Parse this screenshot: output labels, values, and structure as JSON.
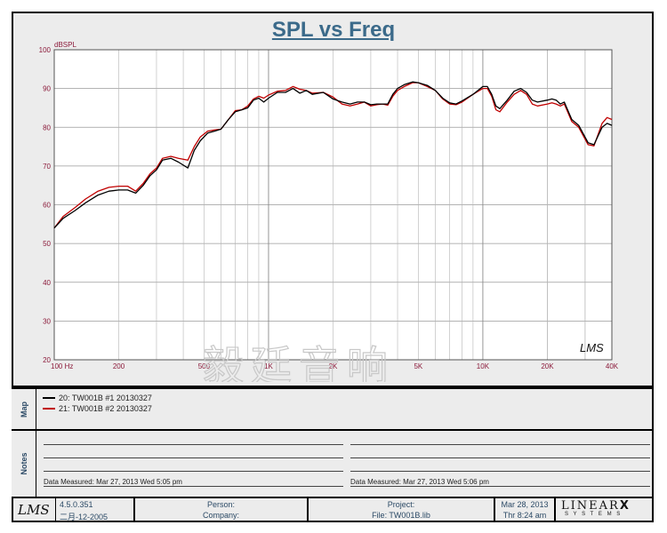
{
  "chart_data": {
    "type": "line",
    "title": "SPL vs Freq",
    "ylabel": "dBSPL",
    "x_scale": "log",
    "xlim": [
      100,
      40000
    ],
    "ylim": [
      20,
      100
    ],
    "grid": true,
    "x_ticks": [
      {
        "value": 100,
        "label": "100  Hz"
      },
      {
        "value": 200,
        "label": "200"
      },
      {
        "value": 500,
        "label": "500"
      },
      {
        "value": 1000,
        "label": "1K"
      },
      {
        "value": 2000,
        "label": "2K"
      },
      {
        "value": 5000,
        "label": "5K"
      },
      {
        "value": 10000,
        "label": "10K"
      },
      {
        "value": 20000,
        "label": "20K"
      },
      {
        "value": 40000,
        "label": "40K"
      }
    ],
    "y_ticks": [
      "100",
      "90",
      "80",
      "70",
      "60",
      "50",
      "40",
      "30",
      "20"
    ],
    "series": [
      {
        "name": "20: TW001B  #1  20130327",
        "color": "#000000",
        "points": [
          [
            100,
            54
          ],
          [
            110,
            56.5
          ],
          [
            125,
            58.5
          ],
          [
            140,
            60.5
          ],
          [
            160,
            62.5
          ],
          [
            180,
            63.5
          ],
          [
            200,
            63.8
          ],
          [
            220,
            63.8
          ],
          [
            240,
            63
          ],
          [
            260,
            65
          ],
          [
            280,
            67.5
          ],
          [
            300,
            69
          ],
          [
            320,
            71.5
          ],
          [
            350,
            72
          ],
          [
            380,
            71
          ],
          [
            420,
            69.5
          ],
          [
            450,
            74
          ],
          [
            480,
            76.5
          ],
          [
            520,
            78.5
          ],
          [
            560,
            79
          ],
          [
            600,
            79.5
          ],
          [
            650,
            82
          ],
          [
            700,
            84
          ],
          [
            750,
            84.5
          ],
          [
            800,
            85
          ],
          [
            850,
            87
          ],
          [
            900,
            87.5
          ],
          [
            950,
            86.5
          ],
          [
            1000,
            87.5
          ],
          [
            1100,
            89
          ],
          [
            1200,
            89
          ],
          [
            1300,
            90
          ],
          [
            1400,
            88.8
          ],
          [
            1500,
            89.5
          ],
          [
            1600,
            88.5
          ],
          [
            1800,
            89
          ],
          [
            2000,
            87.3
          ],
          [
            2200,
            86.5
          ],
          [
            2400,
            86
          ],
          [
            2600,
            86.5
          ],
          [
            2800,
            86.5
          ],
          [
            3000,
            85.8
          ],
          [
            3200,
            86
          ],
          [
            3400,
            86
          ],
          [
            3600,
            86
          ],
          [
            3800,
            88.5
          ],
          [
            4000,
            90
          ],
          [
            4300,
            91
          ],
          [
            4700,
            91.7
          ],
          [
            5000,
            91.5
          ],
          [
            5500,
            90.8
          ],
          [
            6000,
            89.5
          ],
          [
            6500,
            87.5
          ],
          [
            7000,
            86.3
          ],
          [
            7500,
            86
          ],
          [
            8000,
            86.8
          ],
          [
            9000,
            88.5
          ],
          [
            10000,
            90.5
          ],
          [
            10500,
            90.5
          ],
          [
            11000,
            88.5
          ],
          [
            11500,
            85.5
          ],
          [
            12000,
            84.8
          ],
          [
            13000,
            87
          ],
          [
            14000,
            89.3
          ],
          [
            15000,
            90
          ],
          [
            16000,
            89
          ],
          [
            17000,
            87
          ],
          [
            18000,
            86.5
          ],
          [
            20000,
            87
          ],
          [
            21000,
            87.3
          ],
          [
            22000,
            87
          ],
          [
            23000,
            86
          ],
          [
            24000,
            86.5
          ],
          [
            26000,
            82
          ],
          [
            28000,
            80.5
          ],
          [
            31000,
            76
          ],
          [
            33000,
            75.5
          ],
          [
            36000,
            80
          ],
          [
            38000,
            81
          ],
          [
            40000,
            80.5
          ]
        ]
      },
      {
        "name": "21: TW001B  #2  20130327",
        "color": "#c00000",
        "points": [
          [
            100,
            54
          ],
          [
            110,
            57
          ],
          [
            125,
            59.3
          ],
          [
            140,
            61.5
          ],
          [
            160,
            63.5
          ],
          [
            180,
            64.5
          ],
          [
            200,
            64.8
          ],
          [
            220,
            64.8
          ],
          [
            240,
            63.5
          ],
          [
            260,
            65.5
          ],
          [
            280,
            68
          ],
          [
            300,
            69.5
          ],
          [
            320,
            72
          ],
          [
            350,
            72.5
          ],
          [
            380,
            72
          ],
          [
            420,
            71.5
          ],
          [
            450,
            75
          ],
          [
            480,
            77.5
          ],
          [
            520,
            79
          ],
          [
            560,
            79.3
          ],
          [
            600,
            79.5
          ],
          [
            650,
            82
          ],
          [
            700,
            84.3
          ],
          [
            750,
            84.5
          ],
          [
            800,
            85.5
          ],
          [
            850,
            87.3
          ],
          [
            900,
            88
          ],
          [
            950,
            87.5
          ],
          [
            1000,
            88.3
          ],
          [
            1100,
            89.3
          ],
          [
            1200,
            89.5
          ],
          [
            1300,
            90.5
          ],
          [
            1400,
            89.8
          ],
          [
            1500,
            89.5
          ],
          [
            1600,
            88.8
          ],
          [
            1800,
            89
          ],
          [
            2000,
            87.8
          ],
          [
            2200,
            86
          ],
          [
            2400,
            85.5
          ],
          [
            2600,
            86
          ],
          [
            2800,
            86.5
          ],
          [
            3000,
            85.5
          ],
          [
            3200,
            85.8
          ],
          [
            3400,
            86
          ],
          [
            3600,
            85.7
          ],
          [
            3800,
            88
          ],
          [
            4000,
            89.5
          ],
          [
            4300,
            90.5
          ],
          [
            4700,
            91.5
          ],
          [
            5000,
            91.5
          ],
          [
            5500,
            90.5
          ],
          [
            6000,
            89.5
          ],
          [
            6500,
            87.3
          ],
          [
            7000,
            86
          ],
          [
            7500,
            85.8
          ],
          [
            8000,
            86.5
          ],
          [
            9000,
            88.5
          ],
          [
            10000,
            90
          ],
          [
            10500,
            90
          ],
          [
            11000,
            88
          ],
          [
            11500,
            84.5
          ],
          [
            12000,
            84
          ],
          [
            13000,
            86.5
          ],
          [
            14000,
            88.5
          ],
          [
            15000,
            89.5
          ],
          [
            16000,
            88.5
          ],
          [
            17000,
            86
          ],
          [
            18000,
            85.5
          ],
          [
            20000,
            86
          ],
          [
            21000,
            86.3
          ],
          [
            22000,
            86
          ],
          [
            23000,
            85.5
          ],
          [
            24000,
            86
          ],
          [
            26000,
            81.5
          ],
          [
            28000,
            80
          ],
          [
            31000,
            75.5
          ],
          [
            33000,
            75.2
          ],
          [
            36000,
            81
          ],
          [
            38000,
            82.5
          ],
          [
            40000,
            82
          ]
        ]
      }
    ]
  },
  "notes": [
    {
      "measured": "Data Measured: Mar 27, 2013  Wed  5:05 pm"
    },
    {
      "measured": "Data Measured: Mar 27, 2013  Wed  5:06 pm"
    }
  ],
  "tabs": {
    "map": "Map",
    "notes": "Notes"
  },
  "footer": {
    "logo": "LMS",
    "version": "4.5.0.351",
    "build_date": "二月-12-2005",
    "person_label": "Person:",
    "company_label": "Company:",
    "project_label": "Project:",
    "file_label": "File: TW001B.lib",
    "date": "Mar 28, 2013",
    "time": "Thr  8:24 am",
    "brand": "LINEAR",
    "brand_x": "X",
    "brand_sub": "S Y S T E M S"
  },
  "plot_logo": "LMS",
  "watermark": "毅廷音响"
}
